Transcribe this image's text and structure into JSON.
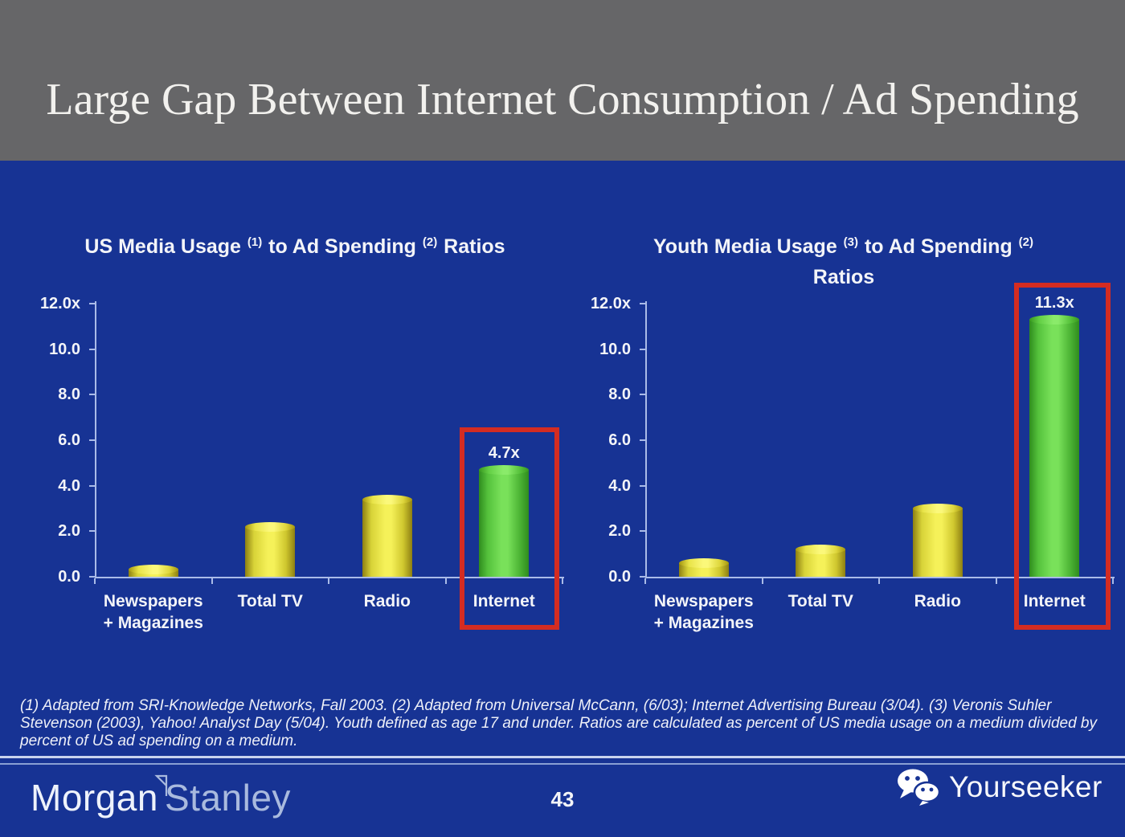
{
  "header": {
    "title": "Large Gap Between Internet Consumption / Ad Spending"
  },
  "chart_data": [
    {
      "type": "bar",
      "title": "US Media Usage (1) to Ad Spending (2) Ratios",
      "title_lines": [
        [
          {
            "text": "US Media Usage ",
            "sup": false
          },
          {
            "text": "(1)",
            "sup": true
          },
          {
            "text": " to Ad Spending ",
            "sup": false
          },
          {
            "text": "(2)",
            "sup": true
          },
          {
            "text": " Ratios",
            "sup": false
          }
        ]
      ],
      "categories": [
        "Newspapers\n+ Magazines",
        "Total TV",
        "Radio",
        "Internet"
      ],
      "values": [
        0.3,
        2.2,
        3.4,
        4.7
      ],
      "value_labels": [
        "",
        "",
        "",
        "4.7x"
      ],
      "highlight_index": 3,
      "ytick_labels": [
        "0.0",
        "2.0",
        "4.0",
        "6.0",
        "8.0",
        "10.0",
        "12.0x"
      ],
      "ylim": [
        0,
        12
      ],
      "xlabel": "",
      "ylabel": "",
      "grid": false,
      "legend": "none",
      "bar_colors": [
        "yellow",
        "yellow",
        "yellow",
        "green"
      ]
    },
    {
      "type": "bar",
      "title": "Youth Media Usage (3) to Ad Spending (2) Ratios",
      "title_lines": [
        [
          {
            "text": "Youth Media Usage ",
            "sup": false
          },
          {
            "text": "(3)",
            "sup": true
          },
          {
            "text": " to Ad Spending ",
            "sup": false
          },
          {
            "text": "(2)",
            "sup": true
          }
        ],
        [
          {
            "text": "Ratios",
            "sup": false
          }
        ]
      ],
      "categories": [
        "Newspapers\n+ Magazines",
        "Total TV",
        "Radio",
        "Internet"
      ],
      "values": [
        0.6,
        1.2,
        3.0,
        11.3
      ],
      "value_labels": [
        "",
        "",
        "",
        "11.3x"
      ],
      "highlight_index": 3,
      "ytick_labels": [
        "0.0",
        "2.0",
        "4.0",
        "6.0",
        "8.0",
        "10.0",
        "12.0x"
      ],
      "ylim": [
        0,
        12
      ],
      "xlabel": "",
      "ylabel": "",
      "grid": false,
      "legend": "none",
      "bar_colors": [
        "yellow",
        "yellow",
        "yellow",
        "green"
      ]
    }
  ],
  "footnote": "(1) Adapted from SRI-Knowledge Networks, Fall 2003.  (2) Adapted from Universal McCann, (6/03); Internet Advertising Bureau (3/04). (3) Veronis Suhler Stevenson (2003), Yahoo! Analyst Day (5/04).  Youth defined as age 17 and under.  Ratios are calculated as percent of US media usage on a medium divided by percent of US ad spending on a medium.",
  "footer": {
    "page_number": "43",
    "brand_left_morgan": "Morgan",
    "brand_left_stanley": "Stanley",
    "brand_right": "Yourseeker"
  },
  "colors": {
    "background": "#173394",
    "header_gray": "#666668",
    "axis": "#aabbe8",
    "highlight_red": "#d42c22",
    "bar_yellow_center": "#f5f159",
    "bar_yellow_edge": "#8d7f12",
    "bar_green_center": "#79e15a",
    "bar_green_edge": "#2f8c1e",
    "text": "#f3f4f8"
  }
}
